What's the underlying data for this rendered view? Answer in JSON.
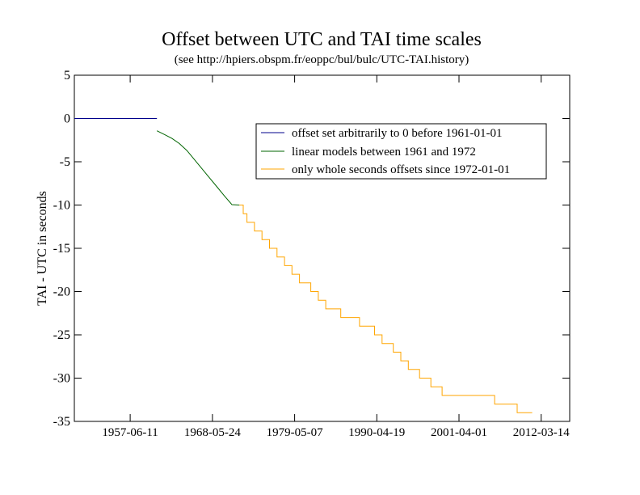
{
  "chart_data": {
    "type": "line",
    "title": "Offset between UTC and TAI time scales",
    "subtitle": "(see http://hpiers.obspm.fr/eoppc/bul/bulc/UTC-TAI.history)",
    "xlabel": "",
    "ylabel": "TAI - UTC in seconds",
    "xlim": [
      1950.0,
      2016.0
    ],
    "ylim": [
      -35,
      5
    ],
    "y_ticks": [
      5,
      0,
      -5,
      -10,
      -15,
      -20,
      -25,
      -30,
      -35
    ],
    "x_ticks": [
      {
        "x": 1957.44,
        "label": "1957-06-11"
      },
      {
        "x": 1968.4,
        "label": "1968-05-24"
      },
      {
        "x": 1979.35,
        "label": "1979-05-07"
      },
      {
        "x": 1990.3,
        "label": "1990-04-19"
      },
      {
        "x": 2001.25,
        "label": "2001-04-01"
      },
      {
        "x": 2012.2,
        "label": "2012-03-14"
      }
    ],
    "legend_position": "top-right",
    "series": [
      {
        "name": "offset set arbitrarily to 0 before 1961-01-01",
        "color": "#00008b",
        "step": false,
        "points": [
          [
            1950.0,
            0
          ],
          [
            1961.0,
            0
          ]
        ]
      },
      {
        "name": "linear models between 1961 and 1972",
        "color": "#006400",
        "step": false,
        "points": [
          [
            1961.0,
            -1.42
          ],
          [
            1962.0,
            -1.85
          ],
          [
            1963.0,
            -2.3
          ],
          [
            1964.0,
            -2.9
          ],
          [
            1965.0,
            -3.7
          ],
          [
            1966.0,
            -4.75
          ],
          [
            1967.0,
            -5.8
          ],
          [
            1968.0,
            -6.85
          ],
          [
            1969.0,
            -7.9
          ],
          [
            1970.0,
            -8.95
          ],
          [
            1971.0,
            -9.95
          ],
          [
            1972.0,
            -10
          ]
        ]
      },
      {
        "name": "only whole seconds offsets since 1972-01-01",
        "color": "#ffa500",
        "step": true,
        "points": [
          [
            1972.0,
            -10
          ],
          [
            1972.5,
            -11
          ],
          [
            1973.0,
            -12
          ],
          [
            1974.0,
            -13
          ],
          [
            1975.0,
            -14
          ],
          [
            1976.0,
            -15
          ],
          [
            1977.0,
            -16
          ],
          [
            1978.0,
            -17
          ],
          [
            1979.0,
            -18
          ],
          [
            1980.0,
            -19
          ],
          [
            1981.5,
            -20
          ],
          [
            1982.5,
            -21
          ],
          [
            1983.5,
            -22
          ],
          [
            1985.5,
            -23
          ],
          [
            1988.0,
            -24
          ],
          [
            1990.0,
            -25
          ],
          [
            1991.0,
            -26
          ],
          [
            1992.5,
            -27
          ],
          [
            1993.5,
            -28
          ],
          [
            1994.5,
            -29
          ],
          [
            1996.0,
            -30
          ],
          [
            1997.5,
            -31
          ],
          [
            1999.0,
            -32
          ],
          [
            2006.0,
            -33
          ],
          [
            2009.0,
            -34
          ],
          [
            2011.0,
            -34
          ]
        ]
      }
    ]
  }
}
